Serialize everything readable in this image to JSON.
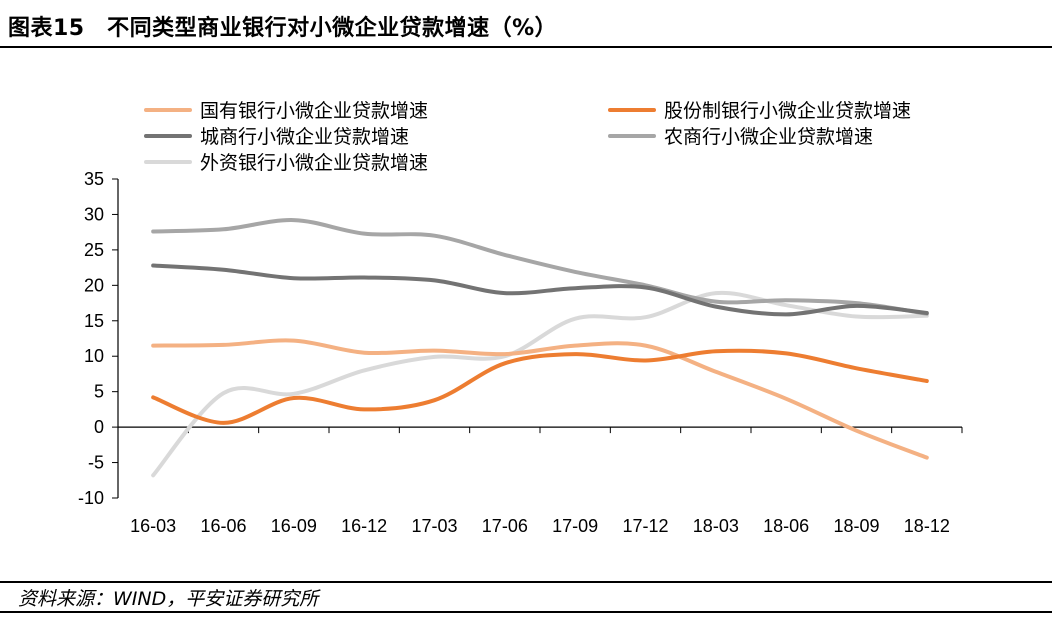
{
  "header": {
    "title": "图表15　不同类型商业银行对小微企业贷款增速（%）"
  },
  "footer": {
    "source": "资料来源：WIND，平安证券研究所"
  },
  "chart_data": {
    "type": "line",
    "categories": [
      "16-03",
      "16-06",
      "16-09",
      "16-12",
      "17-03",
      "17-06",
      "17-09",
      "17-12",
      "18-03",
      "18-06",
      "18-09",
      "18-12"
    ],
    "ylim": [
      -10,
      35
    ],
    "yticks": [
      "35",
      "30",
      "25",
      "20",
      "15",
      "10",
      "5",
      "0",
      "-5",
      "-10"
    ],
    "ytick_values": [
      35,
      30,
      25,
      20,
      15,
      10,
      5,
      0,
      -5,
      -10
    ],
    "grid": false,
    "legend_position": "top",
    "series": [
      {
        "name": "国有银行小微企业贷款增速",
        "color": "#f4b183",
        "values": [
          11.5,
          11.6,
          12.2,
          10.5,
          10.8,
          10.3,
          11.5,
          11.5,
          7.8,
          4.0,
          -0.5,
          -4.3
        ]
      },
      {
        "name": "股份制银行小微企业贷款增速",
        "color": "#ed7d31",
        "values": [
          4.2,
          0.6,
          4.1,
          2.5,
          3.8,
          9.0,
          10.3,
          9.4,
          10.7,
          10.4,
          8.3,
          6.5
        ]
      },
      {
        "name": "城商行小微企业贷款增速",
        "color": "#737373",
        "values": [
          22.8,
          22.2,
          21.0,
          21.1,
          20.7,
          18.9,
          19.6,
          19.7,
          17.0,
          15.9,
          17.1,
          16.1
        ]
      },
      {
        "name": "农商行小微企业贷款增速",
        "color": "#a6a6a6",
        "values": [
          27.6,
          27.9,
          29.2,
          27.3,
          27.0,
          24.3,
          21.9,
          20.0,
          17.7,
          17.9,
          17.5,
          16.0
        ]
      },
      {
        "name": "外资银行小微企业贷款增速",
        "color": "#d9d9d9",
        "values": [
          -6.8,
          4.8,
          4.7,
          8.0,
          9.9,
          10.0,
          15.3,
          15.5,
          18.9,
          17.2,
          15.6,
          15.7
        ]
      }
    ]
  }
}
